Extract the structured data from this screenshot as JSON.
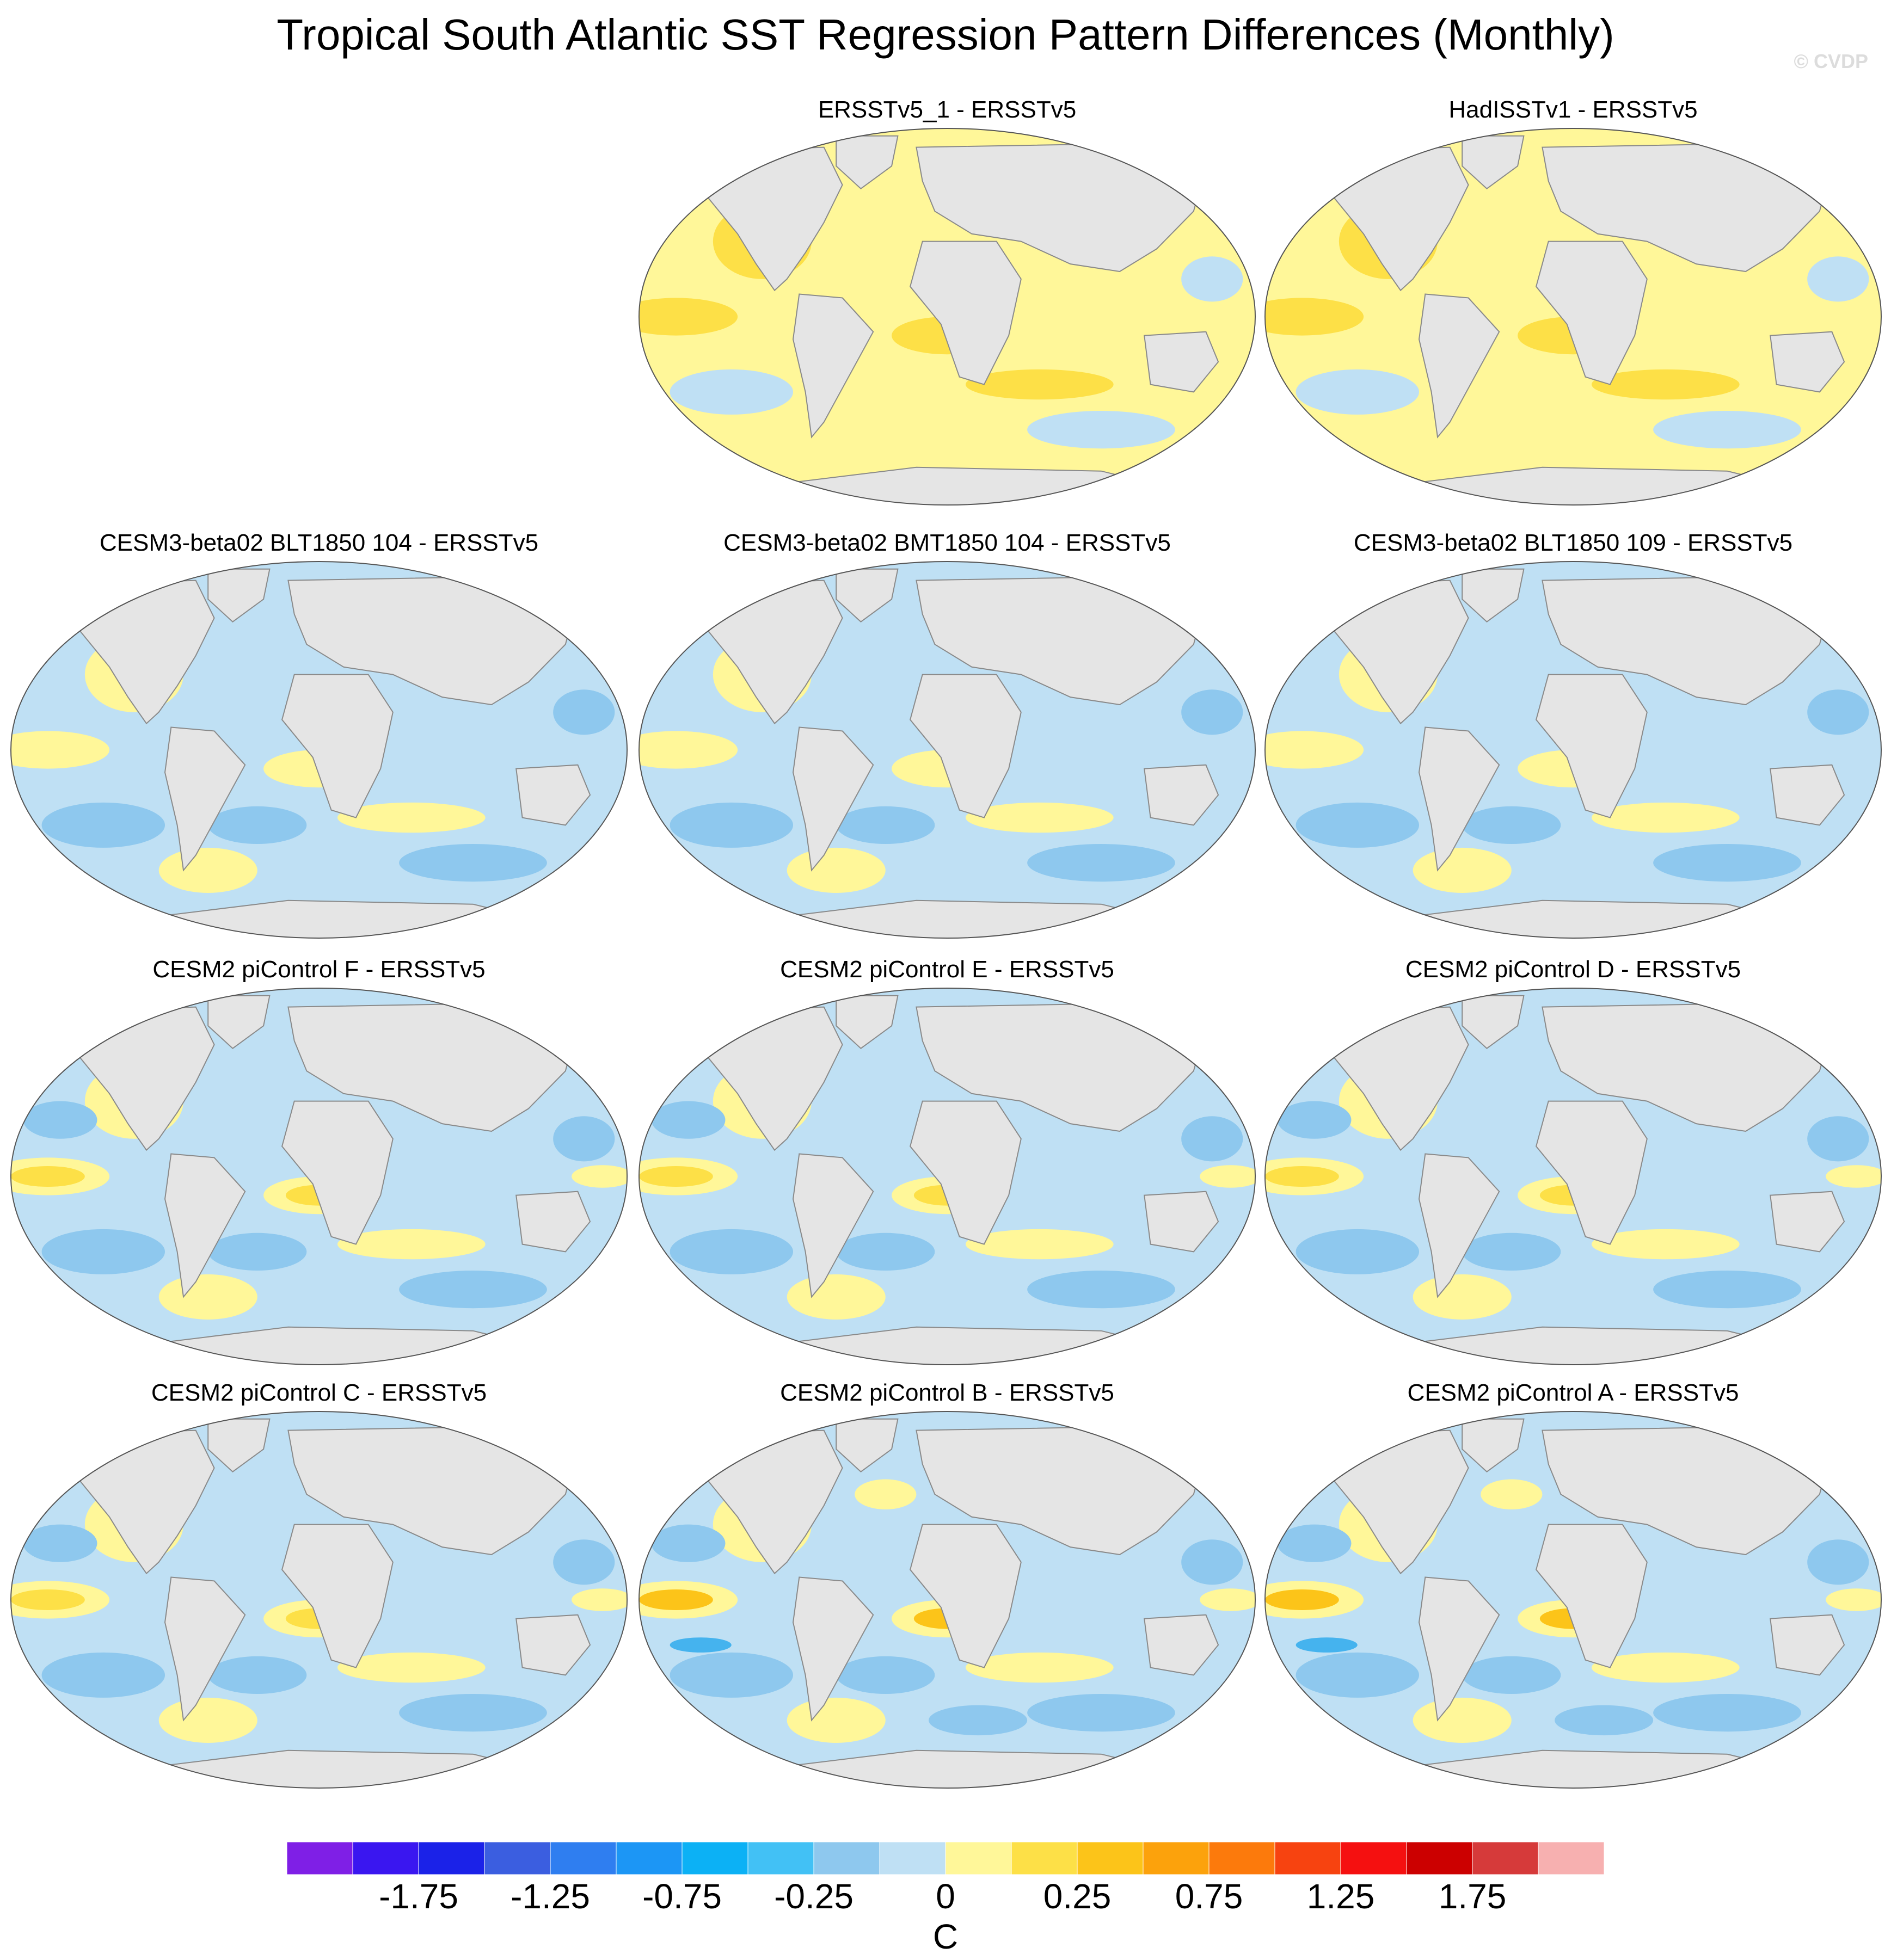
{
  "figure": {
    "title": "Tropical South Atlantic SST Regression Pattern Differences (Monthly)",
    "watermark": "© CVDP",
    "units": "C"
  },
  "colors": {
    "land": "#e5e5e5",
    "coast": "#8a8a8a",
    "ocean_neg_weak": "#bfe0f4",
    "ocean_pos_weak": "#fff799",
    "ocean_neg": "#8ec8ee",
    "ocean_pos": "#fde047",
    "ocean_pos_strong": "#fcc419",
    "ocean_neg_strong": "#45b3ee"
  },
  "panels": [
    {
      "id": "ersstv5_1",
      "title": "ERSSTv5_1 - ERSSTv5",
      "base": "pos",
      "intensity": 0
    },
    {
      "id": "hadisstv1",
      "title": "HadISSTv1 - ERSSTv5",
      "base": "pos",
      "intensity": 0
    },
    {
      "id": "blt1850_104",
      "title": "CESM3-beta02 BLT1850 104 - ERSSTv5",
      "base": "neg",
      "intensity": 1
    },
    {
      "id": "bmt1850_104",
      "title": "CESM3-beta02 BMT1850 104 - ERSSTv5",
      "base": "neg",
      "intensity": 1
    },
    {
      "id": "blt1850_109",
      "title": "CESM3-beta02 BLT1850 109 - ERSSTv5",
      "base": "neg",
      "intensity": 1
    },
    {
      "id": "picontrol_f",
      "title": "CESM2 piControl F - ERSSTv5",
      "base": "neg",
      "intensity": 2
    },
    {
      "id": "picontrol_e",
      "title": "CESM2 piControl E - ERSSTv5",
      "base": "neg",
      "intensity": 2
    },
    {
      "id": "picontrol_d",
      "title": "CESM2 piControl D - ERSSTv5",
      "base": "neg",
      "intensity": 2
    },
    {
      "id": "picontrol_c",
      "title": "CESM2 piControl C - ERSSTv5",
      "base": "neg",
      "intensity": 2
    },
    {
      "id": "picontrol_b",
      "title": "CESM2 piControl B - ERSSTv5",
      "base": "neg",
      "intensity": 3
    },
    {
      "id": "picontrol_a",
      "title": "CESM2 piControl A - ERSSTv5",
      "base": "neg",
      "intensity": 3
    }
  ],
  "colorbar": {
    "colors": [
      "#7f1fe6",
      "#3a16f0",
      "#1b22e8",
      "#3b5ee0",
      "#2f7ef0",
      "#1c96f5",
      "#0cb1f5",
      "#42c1f5",
      "#8ec8ee",
      "#bfe0f4",
      "#fff799",
      "#fde047",
      "#fcc419",
      "#fca20c",
      "#fc7a0c",
      "#f74310",
      "#f51010",
      "#cc0000",
      "#d63a3a",
      "#f7b0b0"
    ],
    "labels": [
      "-1.75",
      "-1.25",
      "-0.75",
      "-0.25",
      "0",
      "0.25",
      "0.75",
      "1.25",
      "1.75"
    ],
    "label_boundaries": [
      2,
      4,
      6,
      8,
      10,
      12,
      14,
      16,
      18
    ]
  }
}
